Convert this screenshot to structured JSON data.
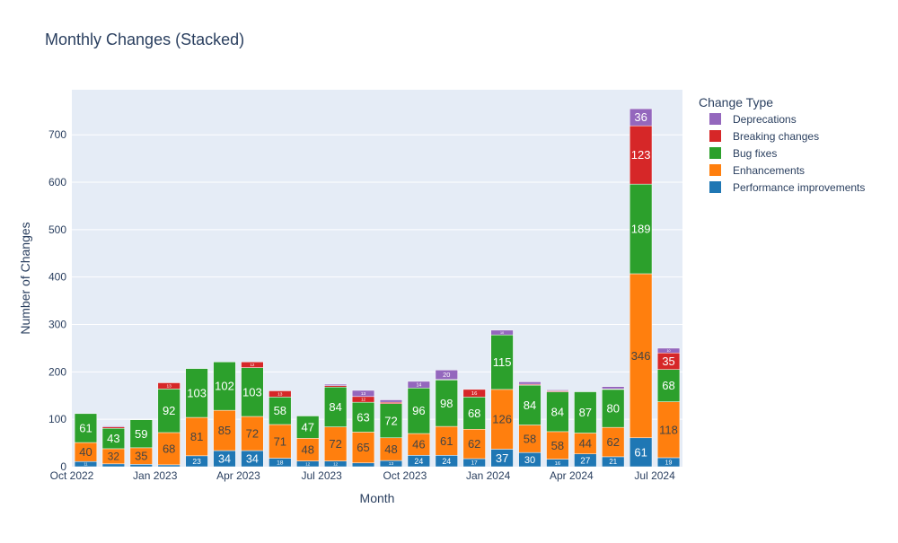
{
  "chart_data": {
    "type": "bar",
    "stacked": true,
    "title": "Monthly Changes (Stacked)",
    "xlabel": "Month",
    "ylabel": "Number of Changes",
    "ylim": [
      0,
      795
    ],
    "y_ticks": [
      0,
      100,
      200,
      300,
      400,
      500,
      600,
      700
    ],
    "x_tick_labels": [
      {
        "index": 0,
        "label": "Oct 2022"
      },
      {
        "index": 3,
        "label": "Jan 2023"
      },
      {
        "index": 6,
        "label": "Apr 2023"
      },
      {
        "index": 9,
        "label": "Jul 2023"
      },
      {
        "index": 12,
        "label": "Oct 2023"
      },
      {
        "index": 15,
        "label": "Jan 2024"
      },
      {
        "index": 18,
        "label": "Apr 2024"
      },
      {
        "index": 21,
        "label": "Jul 2024"
      }
    ],
    "categories": [
      "2022-10",
      "2022-11",
      "2022-12",
      "2023-01",
      "2023-02",
      "2023-03",
      "2023-04",
      "2023-05",
      "2023-06",
      "2023-07",
      "2023-08",
      "2023-09",
      "2023-10",
      "2023-11",
      "2023-12",
      "2024-01",
      "2024-02",
      "2024-03",
      "2024-04",
      "2024-05",
      "2024-06",
      "2024-07"
    ],
    "legend_title": "Change Type",
    "legend_position": "right",
    "grid": true,
    "plot_background": "#e5ecf6",
    "series": [
      {
        "name": "Performance improvements",
        "color": "#1f77b4",
        "values": [
          11,
          6,
          5,
          4,
          23,
          34,
          34,
          18,
          12,
          12,
          8,
          13,
          24,
          24,
          17,
          37,
          30,
          16,
          27,
          21,
          61,
          19
        ]
      },
      {
        "name": "Enhancements",
        "color": "#ff7f0e",
        "values": [
          40,
          32,
          35,
          68,
          81,
          85,
          72,
          71,
          48,
          72,
          65,
          48,
          46,
          61,
          62,
          126,
          58,
          58,
          44,
          62,
          346,
          118
        ]
      },
      {
        "name": "Bug fixes",
        "color": "#2ca02c",
        "values": [
          61,
          43,
          59,
          92,
          103,
          102,
          103,
          58,
          47,
          84,
          63,
          72,
          96,
          98,
          68,
          115,
          84,
          84,
          87,
          80,
          189,
          68
        ]
      },
      {
        "name": "Breaking changes",
        "color": "#d62728",
        "values": [
          0,
          3,
          0,
          13,
          0,
          0,
          12,
          13,
          0,
          3,
          12,
          3,
          0,
          1,
          16,
          0,
          2,
          2,
          0,
          1,
          123,
          35
        ]
      },
      {
        "name": "Deprecations",
        "color": "#9467bd",
        "values": [
          0,
          2,
          0,
          0,
          0,
          0,
          0,
          0,
          0,
          3,
          13,
          5,
          14,
          20,
          0,
          10,
          5,
          2,
          0,
          5,
          36,
          10
        ]
      }
    ]
  }
}
